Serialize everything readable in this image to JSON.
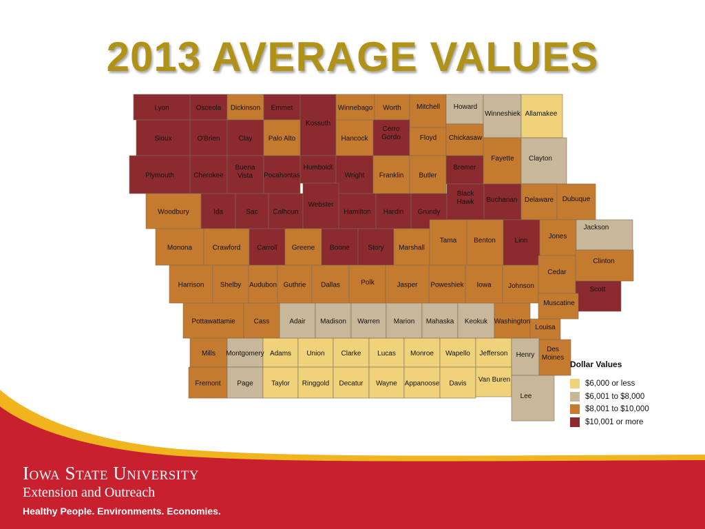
{
  "title": "2013 AVERAGE VALUES",
  "colors": {
    "title": "#b19218",
    "c1": "#f0d27a",
    "c2": "#c9b79a",
    "c3": "#c47a2f",
    "c4": "#8c2b2f",
    "footer_red": "#c8202f",
    "footer_gold": "#f0b41e"
  },
  "legend": {
    "title": "Dollar Values",
    "items": [
      {
        "label": "$6,000 or less",
        "color": "#f0d27a"
      },
      {
        "label": "$6,001 to $8,000",
        "color": "#c9b79a"
      },
      {
        "label": "$8,001 to $10,000",
        "color": "#c47a2f"
      },
      {
        "label": "$10,001 or more",
        "color": "#8c2b2f"
      }
    ]
  },
  "counties": [
    {
      "name": "Lyon",
      "class": 4
    },
    {
      "name": "Osceola",
      "class": 4
    },
    {
      "name": "Dickinson",
      "class": 3
    },
    {
      "name": "Emmet",
      "class": 4
    },
    {
      "name": "Kossuth",
      "class": 4
    },
    {
      "name": "Winnebago",
      "class": 3
    },
    {
      "name": "Worth",
      "class": 3
    },
    {
      "name": "Mitchell",
      "class": 3
    },
    {
      "name": "Howard",
      "class": 2
    },
    {
      "name": "Winneshiek",
      "class": 2
    },
    {
      "name": "Allamakee",
      "class": 1
    },
    {
      "name": "Sioux",
      "class": 4
    },
    {
      "name": "O'Brien",
      "class": 4
    },
    {
      "name": "Clay",
      "class": 4
    },
    {
      "name": "Palo Alto",
      "class": 3
    },
    {
      "name": "Hancock",
      "class": 3
    },
    {
      "name": "Cerro Gordo",
      "class": 4
    },
    {
      "name": "Floyd",
      "class": 3
    },
    {
      "name": "Chickasaw",
      "class": 3
    },
    {
      "name": "Fayette",
      "class": 3
    },
    {
      "name": "Clayton",
      "class": 2
    },
    {
      "name": "Plymouth",
      "class": 4
    },
    {
      "name": "Cherokee",
      "class": 4
    },
    {
      "name": "Buena Vista",
      "class": 4
    },
    {
      "name": "Pocahontas",
      "class": 4
    },
    {
      "name": "Humboldt",
      "class": 4
    },
    {
      "name": "Wright",
      "class": 4
    },
    {
      "name": "Franklin",
      "class": 3
    },
    {
      "name": "Butler",
      "class": 3
    },
    {
      "name": "Bremer",
      "class": 4
    },
    {
      "name": "Woodbury",
      "class": 3
    },
    {
      "name": "Ida",
      "class": 4
    },
    {
      "name": "Sac",
      "class": 4
    },
    {
      "name": "Calhoun",
      "class": 4
    },
    {
      "name": "Webster",
      "class": 4
    },
    {
      "name": "Hamilton",
      "class": 4
    },
    {
      "name": "Hardin",
      "class": 4
    },
    {
      "name": "Grundy",
      "class": 4
    },
    {
      "name": "Black Hawk",
      "class": 4
    },
    {
      "name": "Buchanan",
      "class": 4
    },
    {
      "name": "Delaware",
      "class": 3
    },
    {
      "name": "Dubuque",
      "class": 3
    },
    {
      "name": "Monona",
      "class": 3
    },
    {
      "name": "Crawford",
      "class": 3
    },
    {
      "name": "Carroll",
      "class": 4
    },
    {
      "name": "Greene",
      "class": 3
    },
    {
      "name": "Boone",
      "class": 4
    },
    {
      "name": "Story",
      "class": 4
    },
    {
      "name": "Marshall",
      "class": 3
    },
    {
      "name": "Tama",
      "class": 3
    },
    {
      "name": "Benton",
      "class": 3
    },
    {
      "name": "Linn",
      "class": 4
    },
    {
      "name": "Jones",
      "class": 3
    },
    {
      "name": "Jackson",
      "class": 2
    },
    {
      "name": "Harrison",
      "class": 3
    },
    {
      "name": "Shelby",
      "class": 3
    },
    {
      "name": "Audubon",
      "class": 3
    },
    {
      "name": "Guthrie",
      "class": 3
    },
    {
      "name": "Dallas",
      "class": 3
    },
    {
      "name": "Polk",
      "class": 3
    },
    {
      "name": "Jasper",
      "class": 3
    },
    {
      "name": "Poweshiek",
      "class": 3
    },
    {
      "name": "Iowa",
      "class": 3
    },
    {
      "name": "Johnson",
      "class": 3
    },
    {
      "name": "Cedar",
      "class": 3
    },
    {
      "name": "Clinton",
      "class": 3
    },
    {
      "name": "Scott",
      "class": 4
    },
    {
      "name": "Pottawattamie",
      "class": 3
    },
    {
      "name": "Cass",
      "class": 3
    },
    {
      "name": "Adair",
      "class": 2
    },
    {
      "name": "Madison",
      "class": 2
    },
    {
      "name": "Warren",
      "class": 2
    },
    {
      "name": "Marion",
      "class": 2
    },
    {
      "name": "Mahaska",
      "class": 2
    },
    {
      "name": "Keokuk",
      "class": 2
    },
    {
      "name": "Washington",
      "class": 3
    },
    {
      "name": "Muscatine",
      "class": 3
    },
    {
      "name": "Louisa",
      "class": 3
    },
    {
      "name": "Mills",
      "class": 3
    },
    {
      "name": "Montgomery",
      "class": 2
    },
    {
      "name": "Adams",
      "class": 1
    },
    {
      "name": "Union",
      "class": 1
    },
    {
      "name": "Clarke",
      "class": 1
    },
    {
      "name": "Lucas",
      "class": 1
    },
    {
      "name": "Monroe",
      "class": 1
    },
    {
      "name": "Wapello",
      "class": 1
    },
    {
      "name": "Jefferson",
      "class": 1
    },
    {
      "name": "Henry",
      "class": 2
    },
    {
      "name": "Des Moines",
      "class": 3
    },
    {
      "name": "Fremont",
      "class": 3
    },
    {
      "name": "Page",
      "class": 2
    },
    {
      "name": "Taylor",
      "class": 1
    },
    {
      "name": "Ringgold",
      "class": 1
    },
    {
      "name": "Decatur",
      "class": 1
    },
    {
      "name": "Wayne",
      "class": 1
    },
    {
      "name": "Appanoose",
      "class": 1
    },
    {
      "name": "Davis",
      "class": 1
    },
    {
      "name": "Van Buren",
      "class": 1
    },
    {
      "name": "Lee",
      "class": 2
    }
  ],
  "footer": {
    "university": "Iowa State University",
    "subtitle": "Extension and Outreach",
    "tagline": "Healthy People. Environments. Economies."
  }
}
